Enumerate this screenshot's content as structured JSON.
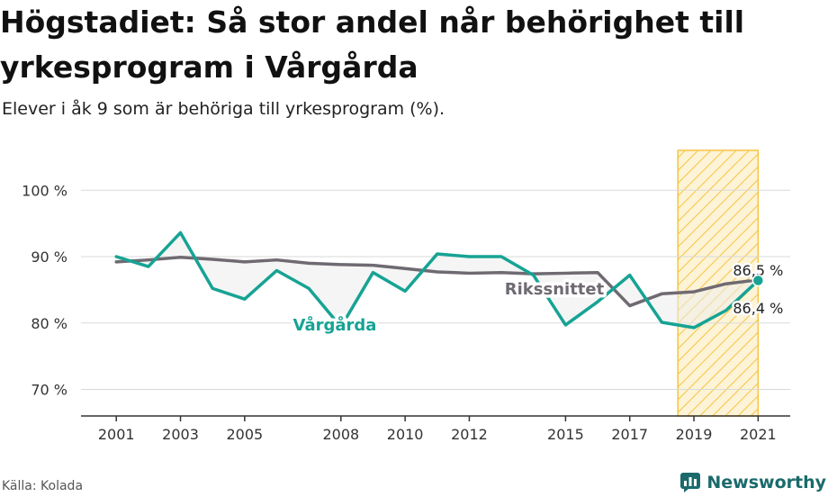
{
  "title": "Högstadiet: Så stor andel når behörighet till yrkesprogram i Vårgårda",
  "subtitle": "Elever i åk 9 som är behöriga till yrkesprogram (%).",
  "source": "Källa: Kolada",
  "brand": "Newsworthy",
  "colors": {
    "vargarda": "#16a394",
    "riket": "#6f6a72",
    "highlight": "#f5c441",
    "grid": "#d9d9d9"
  },
  "chart_data": {
    "type": "line",
    "title": "Högstadiet: Så stor andel når behörighet till yrkesprogram i Vårgårda",
    "subtitle": "Elever i åk 9 som är behöriga till yrkesprogram (%).",
    "ylim": [
      66,
      106
    ],
    "xlim": [
      1999.9,
      2022
    ],
    "yticks": [
      70,
      80,
      90,
      100
    ],
    "ytick_labels": [
      "70 %",
      "80 %",
      "90 %",
      "100 %"
    ],
    "xticks": [
      2001,
      2003,
      2005,
      2008,
      2010,
      2012,
      2015,
      2017,
      2019,
      2021
    ],
    "highlight_range": [
      2018.5,
      2021
    ],
    "series": [
      {
        "name": "Vårgårda",
        "x": [
          2001,
          2002,
          2003,
          2004,
          2005,
          2006,
          2007,
          2008,
          2009,
          2010,
          2011,
          2012,
          2013,
          2014,
          2015,
          2016,
          2017,
          2018,
          2019,
          2020,
          2021
        ],
        "values": [
          90.0,
          88.5,
          93.6,
          85.2,
          83.6,
          87.9,
          85.2,
          79.4,
          87.6,
          84.8,
          90.4,
          90.0,
          90.0,
          87.2,
          79.7,
          83.2,
          87.2,
          80.1,
          79.3,
          81.9,
          86.4
        ]
      },
      {
        "name": "Rikssnittet",
        "x": [
          2001,
          2002,
          2003,
          2004,
          2005,
          2006,
          2007,
          2008,
          2009,
          2010,
          2011,
          2012,
          2013,
          2014,
          2015,
          2016,
          2017,
          2018,
          2019,
          2020,
          2021
        ],
        "values": [
          89.2,
          89.5,
          89.9,
          89.6,
          89.2,
          89.5,
          89.0,
          88.8,
          88.7,
          88.2,
          87.7,
          87.5,
          87.6,
          87.4,
          87.5,
          87.6,
          82.6,
          84.4,
          84.7,
          85.9,
          86.5
        ]
      }
    ],
    "annotations": [
      {
        "text": "Vårgårda",
        "series": "Vårgårda"
      },
      {
        "text": "Rikssnittet",
        "series": "Rikssnittet"
      },
      {
        "text": "86,5 %",
        "series": "Rikssnittet"
      },
      {
        "text": "86,4 %",
        "series": "Vårgårda"
      }
    ]
  }
}
